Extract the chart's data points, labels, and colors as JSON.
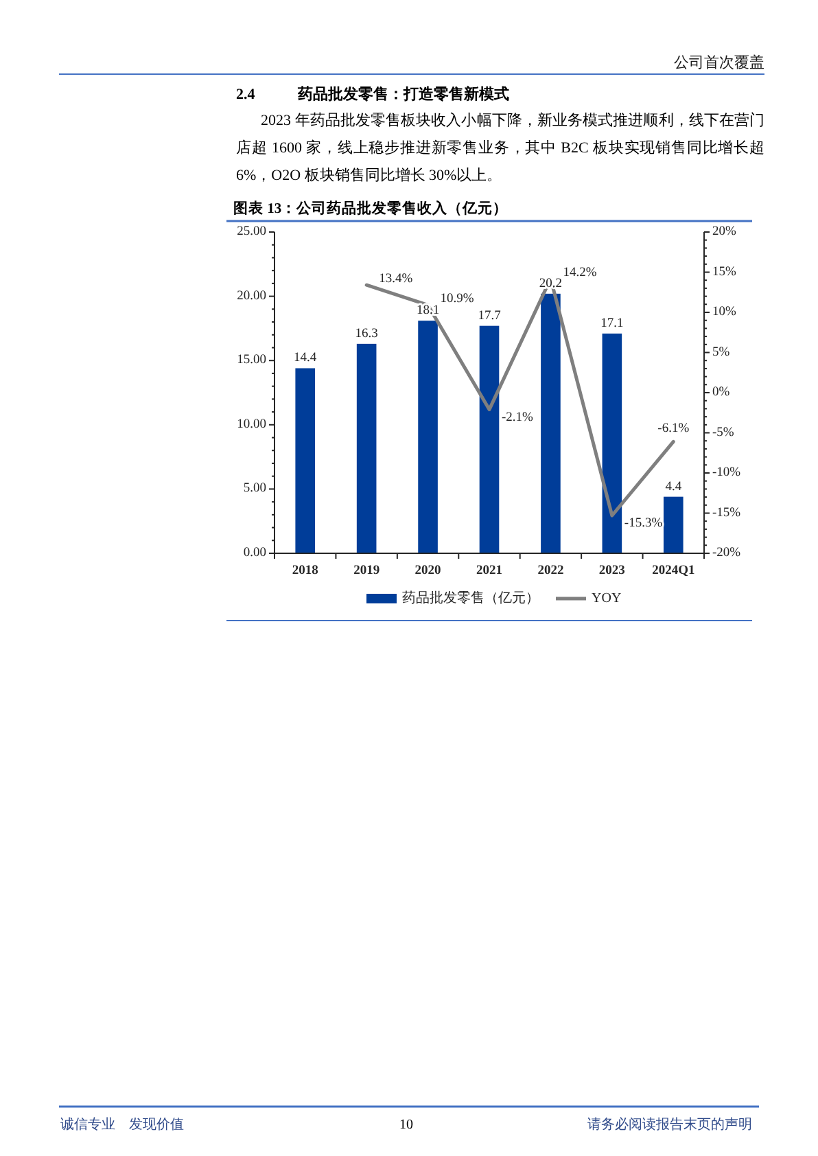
{
  "chart_data": {
    "type": "bar",
    "title": "图表 13：公司药品批发零售收入（亿元）",
    "categories": [
      "2018",
      "2019",
      "2020",
      "2021",
      "2022",
      "2023",
      "2024Q1"
    ],
    "series": [
      {
        "name": "药品批发零售（亿元）",
        "color": "#003d99",
        "values": [
          14.4,
          16.3,
          18.1,
          17.7,
          20.2,
          17.1,
          4.4
        ],
        "value_labels": [
          "14.4",
          "16.3",
          "18.1",
          "17.7",
          "20.2",
          "17.1",
          "4.4"
        ]
      },
      {
        "name": "YOY",
        "type": "line",
        "axis": "y2",
        "color": "#7f7f7f",
        "values": [
          null,
          13.4,
          10.9,
          -2.1,
          14.2,
          -15.3,
          -6.1
        ],
        "value_labels": [
          null,
          "13.4%",
          "10.9%",
          "-2.1%",
          "14.2%",
          "-15.3%",
          "-6.1%"
        ]
      }
    ],
    "ylim": [
      0,
      25
    ],
    "yticks": [
      {
        "value": 0,
        "label": "0.00"
      },
      {
        "value": 1,
        "label": null
      },
      {
        "value": 2,
        "label": null
      },
      {
        "value": 3,
        "label": null
      },
      {
        "value": 4,
        "label": null
      },
      {
        "value": 5,
        "label": "5.00"
      },
      {
        "value": 6,
        "label": null
      },
      {
        "value": 7,
        "label": null
      },
      {
        "value": 8,
        "label": null
      },
      {
        "value": 9,
        "label": null
      },
      {
        "value": 10,
        "label": "10.00"
      },
      {
        "value": 11,
        "label": null
      },
      {
        "value": 12,
        "label": null
      },
      {
        "value": 13,
        "label": null
      },
      {
        "value": 14,
        "label": null
      },
      {
        "value": 15,
        "label": "15.00"
      },
      {
        "value": 16,
        "label": null
      },
      {
        "value": 17,
        "label": null
      },
      {
        "value": 18,
        "label": null
      },
      {
        "value": 19,
        "label": null
      },
      {
        "value": 20,
        "label": "20.00"
      },
      {
        "value": 21,
        "label": null
      },
      {
        "value": 22,
        "label": null
      },
      {
        "value": 23,
        "label": null
      },
      {
        "value": 24,
        "label": null
      },
      {
        "value": 25,
        "label": "25.00"
      }
    ],
    "y2lim": [
      -20,
      20
    ],
    "y2ticks": [
      {
        "value": -20,
        "label": "-20%"
      },
      {
        "value": -19,
        "label": null
      },
      {
        "value": -18,
        "label": null
      },
      {
        "value": -17,
        "label": null
      },
      {
        "value": -16,
        "label": null
      },
      {
        "value": -15,
        "label": "-15%"
      },
      {
        "value": -14,
        "label": null
      },
      {
        "value": -13,
        "label": null
      },
      {
        "value": -12,
        "label": null
      },
      {
        "value": -11,
        "label": null
      },
      {
        "value": -10,
        "label": "-10%"
      },
      {
        "value": -9,
        "label": null
      },
      {
        "value": -8,
        "label": null
      },
      {
        "value": -7,
        "label": null
      },
      {
        "value": -6,
        "label": null
      },
      {
        "value": -5,
        "label": "-5%"
      },
      {
        "value": -4,
        "label": null
      },
      {
        "value": -3,
        "label": null
      },
      {
        "value": -2,
        "label": null
      },
      {
        "value": -1,
        "label": null
      },
      {
        "value": 0,
        "label": "0%"
      },
      {
        "value": 1,
        "label": null
      },
      {
        "value": 2,
        "label": null
      },
      {
        "value": 3,
        "label": null
      },
      {
        "value": 4,
        "label": null
      },
      {
        "value": 5,
        "label": "5%"
      },
      {
        "value": 6,
        "label": null
      },
      {
        "value": 7,
        "label": null
      },
      {
        "value": 8,
        "label": null
      },
      {
        "value": 9,
        "label": null
      },
      {
        "value": 10,
        "label": "10%"
      },
      {
        "value": 11,
        "label": null
      },
      {
        "value": 12,
        "label": null
      },
      {
        "value": 13,
        "label": null
      },
      {
        "value": 14,
        "label": null
      },
      {
        "value": 15,
        "label": "15%"
      },
      {
        "value": 16,
        "label": null
      },
      {
        "value": 17,
        "label": null
      },
      {
        "value": 18,
        "label": null
      },
      {
        "value": 19,
        "label": null
      },
      {
        "value": 20,
        "label": "20%"
      }
    ],
    "legend": "bottom",
    "annotations": [
      "公司首次覆盖",
      "2.4",
      "药品批发零售：打造零售新模式",
      "2023 年药品批发零售板块收入小幅下降，新业务模式推进顺利，线下在营门店超 1600 家，线上稳步推进新零售业务，其中 B2C 板块实现销售同比增长超 6%，O2O 板块销售同比增长 30%以上。",
      "诚信专业　发现价值",
      "10",
      "请务必阅读报告末页的声明"
    ]
  }
}
